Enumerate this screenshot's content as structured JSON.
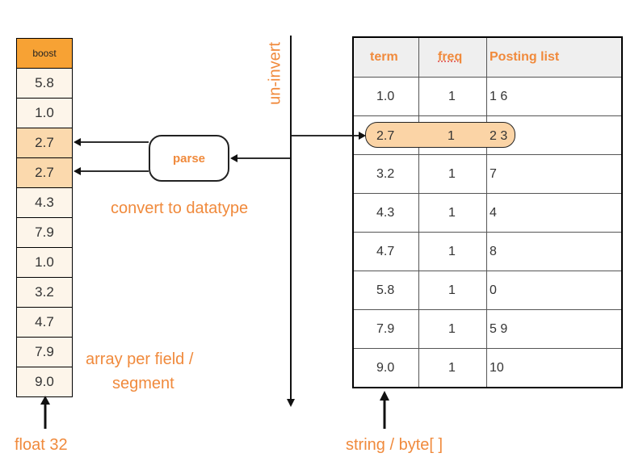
{
  "array": {
    "header": "boost",
    "cells": [
      "5.8",
      "1.0",
      "2.7",
      "2.7",
      "4.3",
      "7.9",
      "1.0",
      "3.2",
      "4.7",
      "7.9",
      "9.0"
    ],
    "highlighted": [
      2,
      3
    ],
    "label_line1": "array per field /",
    "label_line2": "segment",
    "type_label": "float 32"
  },
  "parse": {
    "box_label": "parse",
    "caption": "convert to datatype"
  },
  "uninvert_label": "un-invert",
  "table": {
    "headers": [
      "term",
      "freq",
      "Posting list"
    ],
    "rows": [
      [
        "1.0",
        "1",
        "1 6"
      ],
      [
        "2.7",
        "1",
        "2 3"
      ],
      [
        "3.2",
        "1",
        "7"
      ],
      [
        "4.3",
        "1",
        "4"
      ],
      [
        "4.7",
        "1",
        "8"
      ],
      [
        "5.8",
        "1",
        "0"
      ],
      [
        "7.9",
        "1",
        "5 9"
      ],
      [
        "9.0",
        "1",
        "10"
      ]
    ],
    "highlighted_row": 1,
    "type_label": "string / byte[ ]"
  },
  "colors": {
    "accent": "#f08a3c",
    "boost_header": "#f7a234",
    "cell_highlight": "#fbd9ad",
    "cell_bg": "#fdf5ea",
    "pill": "#fbd4a6"
  }
}
